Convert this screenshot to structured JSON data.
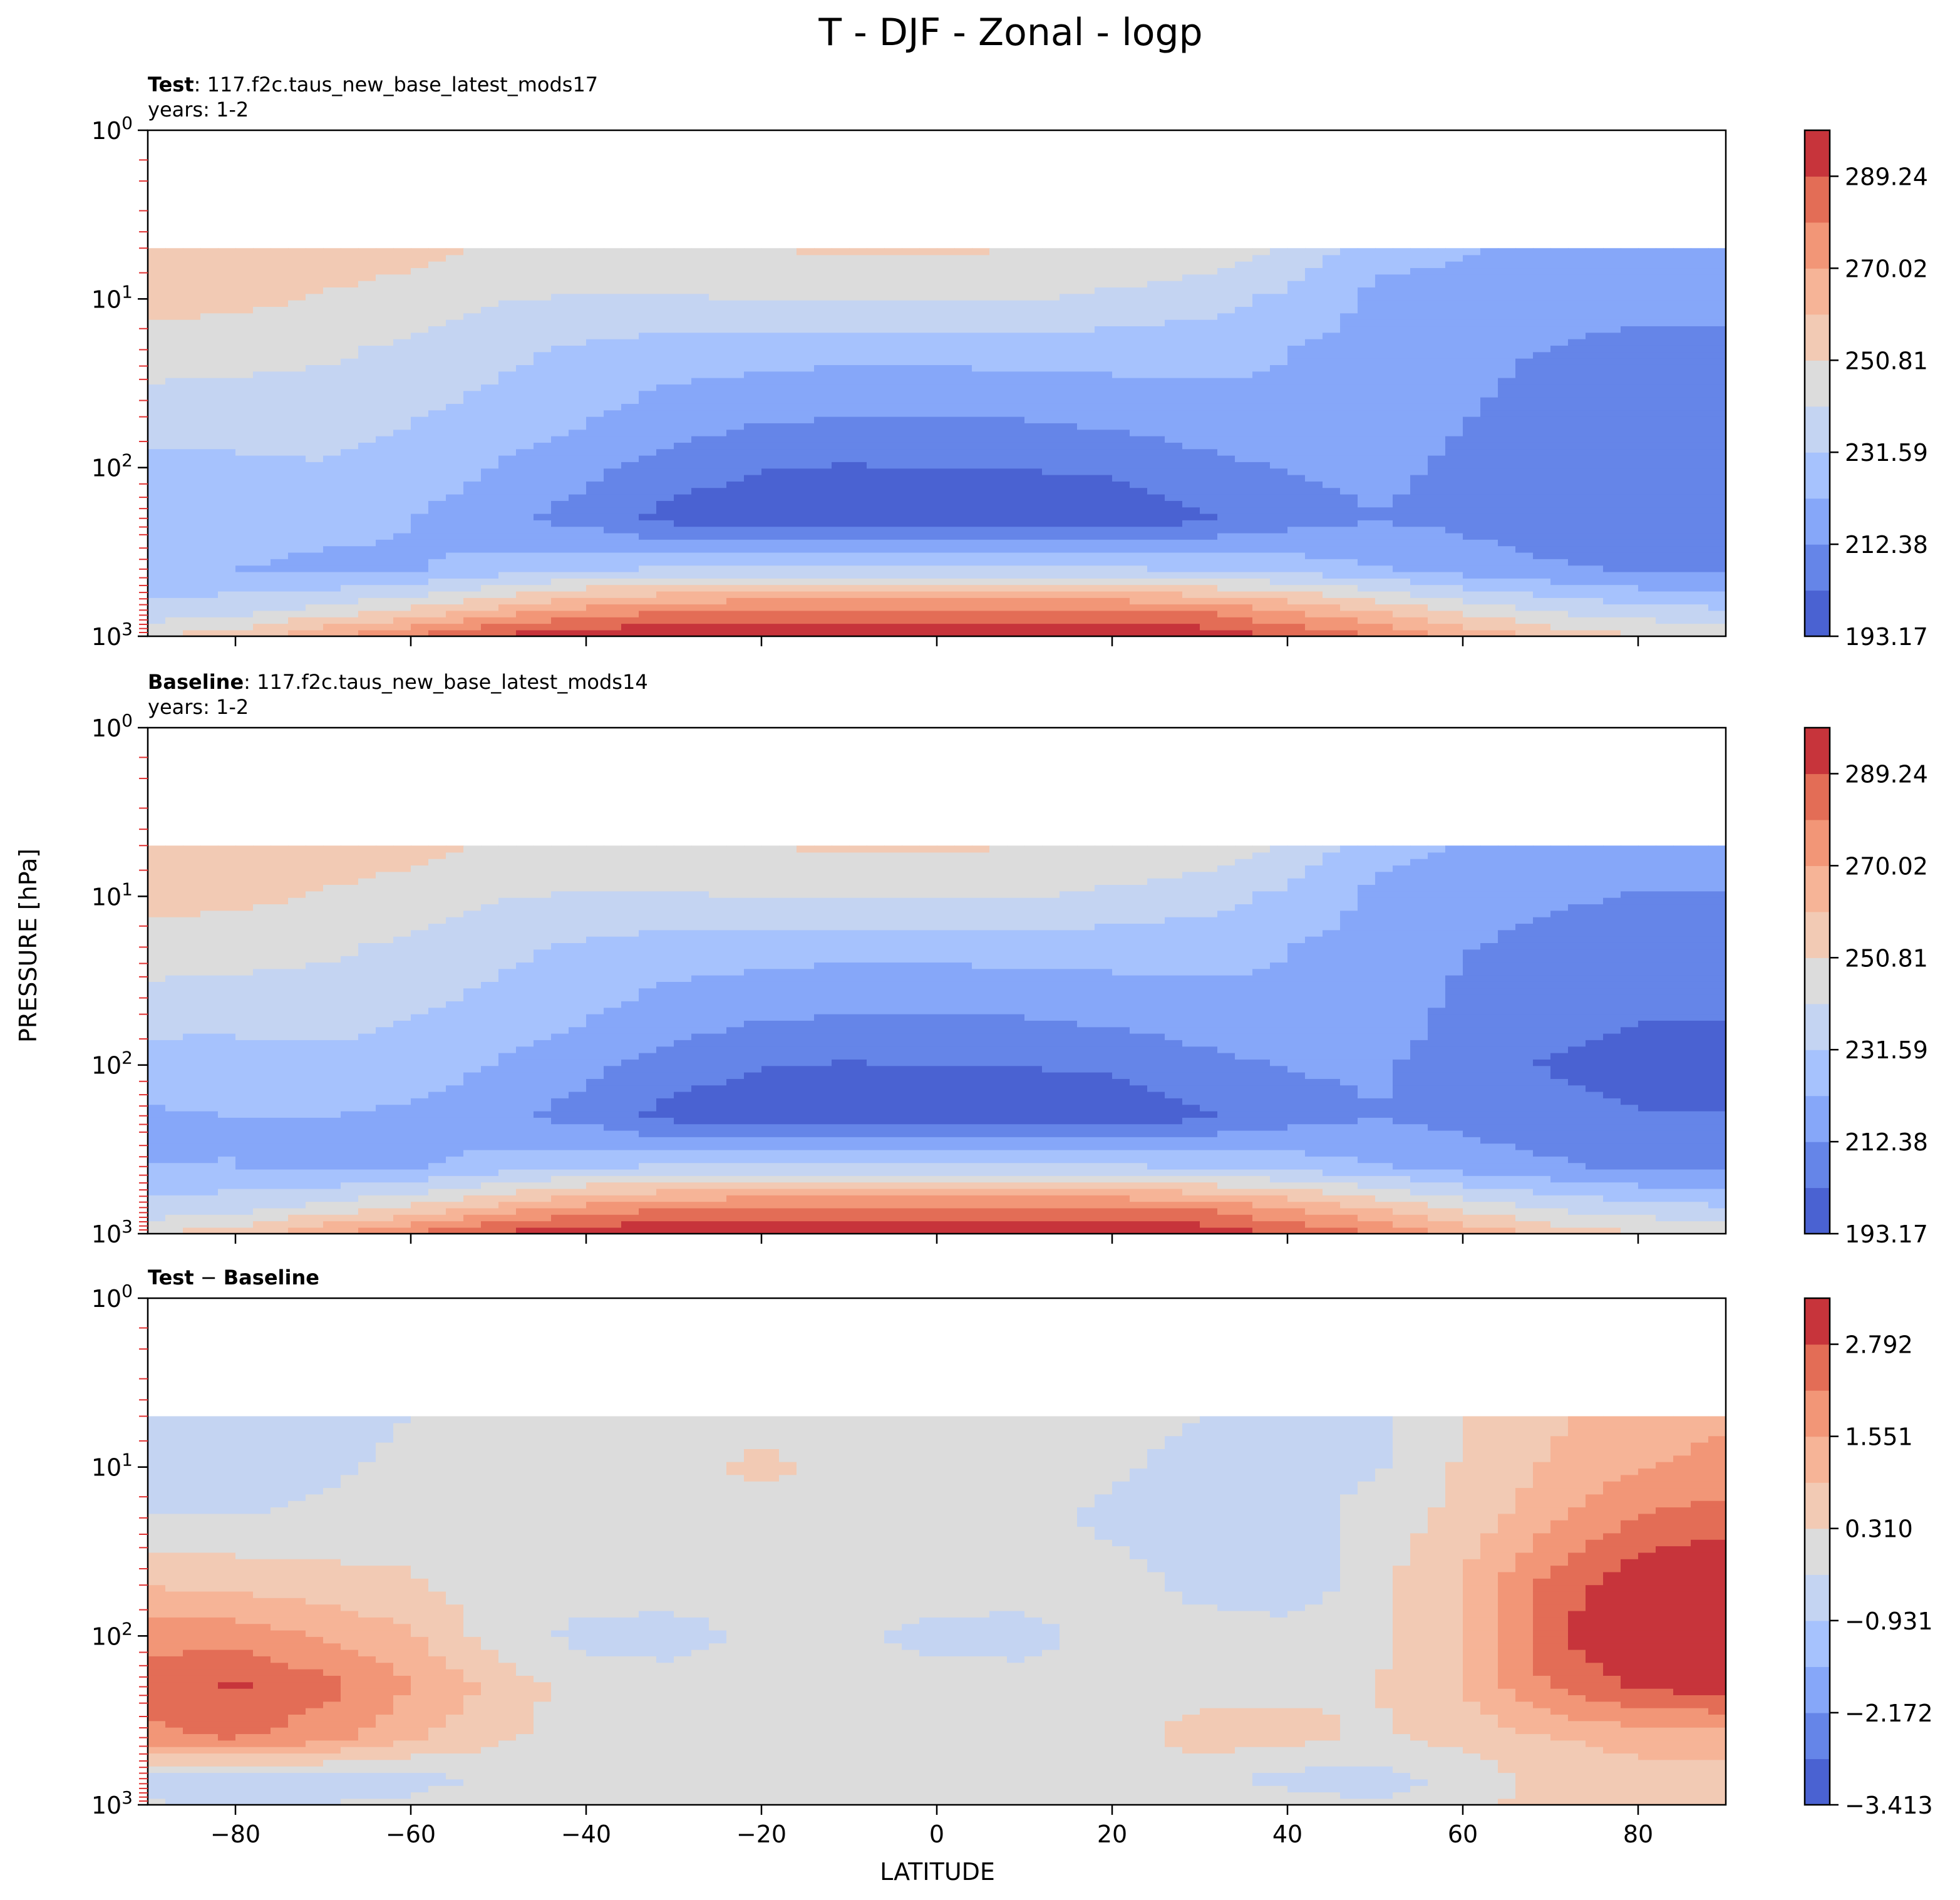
{
  "figure": {
    "title": "T - DJF - Zonal - logp",
    "ylabel": "PRESSURE [hPa]",
    "xlabel": "LATITUDE"
  },
  "colors": {
    "levels": [
      "#4a62d2",
      "#6585e8",
      "#86a7f9",
      "#a6c2fd",
      "#c4d4f2",
      "#dcdcdc",
      "#f2cab4",
      "#f6b497",
      "#f29677",
      "#e36d56",
      "#c7343b"
    ]
  },
  "chart_data": [
    {
      "type": "heatmap",
      "name": "test",
      "title_bold": "Test",
      "title_rest": ": 117.f2c.taus_new_base_latest_mods17",
      "subtitle": "years: 1-2",
      "x": [
        -90,
        -80,
        -70,
        -60,
        -50,
        -40,
        -30,
        -20,
        -10,
        0,
        10,
        20,
        30,
        40,
        50,
        60,
        70,
        80,
        90
      ],
      "y": [
        1000,
        700,
        400,
        200,
        100,
        50,
        20,
        10,
        5
      ],
      "xlim": [
        -90,
        90
      ],
      "ylim": [
        1000,
        1
      ],
      "yscale": "log",
      "yticklabels": [
        "10^3",
        "10^2",
        "10^1",
        "10^0"
      ],
      "colorbar_ticks": [
        "193.17",
        "212.38",
        "231.59",
        "250.81",
        "270.02",
        "289.24"
      ],
      "levels_min": 193.17,
      "levels_step": 9.605,
      "nlevels": 11,
      "z": [
        [
          250,
          256,
          270,
          281,
          292,
          297,
          298,
          299,
          299,
          299,
          299,
          298,
          296,
          289,
          280,
          268,
          258,
          252,
          250
        ],
        [
          235,
          238,
          244,
          252,
          264,
          274,
          279,
          282,
          283,
          283,
          283,
          282,
          278,
          270,
          260,
          248,
          240,
          235,
          233
        ],
        [
          222,
          222,
          220,
          221,
          226,
          231,
          233,
          234,
          234,
          234,
          234,
          233,
          231,
          228,
          223,
          218,
          214,
          211,
          210
        ],
        [
          225,
          226,
          225,
          222,
          215,
          208,
          199,
          196,
          196,
          197,
          197,
          197,
          201,
          208,
          212,
          210,
          206,
          205,
          205
        ],
        [
          229,
          230,
          231,
          229,
          221,
          215,
          208,
          203,
          202,
          203,
          203,
          204,
          209,
          213,
          215,
          210,
          205,
          205,
          205
        ],
        [
          236,
          235,
          235,
          232,
          228,
          223,
          217,
          214,
          212,
          212,
          213,
          215,
          218,
          221,
          218,
          213,
          208,
          207,
          207
        ],
        [
          246,
          245,
          243,
          239,
          234,
          230,
          227,
          226,
          225,
          225,
          226,
          226,
          225,
          222,
          219,
          215,
          212,
          210,
          210
        ],
        [
          255,
          253,
          250,
          247,
          242,
          240,
          240,
          242,
          242,
          242,
          242,
          239,
          236,
          229,
          220,
          218,
          216,
          215,
          215
        ],
        [
          258,
          257,
          256,
          254,
          250,
          250,
          250,
          251,
          252,
          252,
          251,
          250,
          247,
          240,
          225,
          223,
          220,
          218,
          218
        ]
      ]
    },
    {
      "type": "heatmap",
      "name": "baseline",
      "title_bold": "Baseline",
      "title_rest": ": 117.f2c.taus_new_base_latest_mods14",
      "subtitle": "years: 1-2",
      "x": [
        -90,
        -80,
        -70,
        -60,
        -50,
        -40,
        -30,
        -20,
        -10,
        0,
        10,
        20,
        30,
        40,
        50,
        60,
        70,
        80,
        90
      ],
      "y": [
        1000,
        700,
        400,
        200,
        100,
        50,
        20,
        10,
        5
      ],
      "xlim": [
        -90,
        90
      ],
      "ylim": [
        1000,
        1
      ],
      "yscale": "log",
      "yticklabels": [
        "10^3",
        "10^2",
        "10^1",
        "10^0"
      ],
      "colorbar_ticks": [
        "193.17",
        "212.38",
        "231.59",
        "250.81",
        "270.02",
        "289.24"
      ],
      "levels_min": 193.17,
      "levels_step": 9.605,
      "nlevels": 11,
      "z": [
        [
          250,
          256,
          270,
          281,
          292,
          297,
          298,
          299,
          299,
          299,
          299,
          298,
          296,
          289,
          280,
          268,
          258,
          252,
          250
        ],
        [
          235,
          238,
          244,
          252,
          264,
          274,
          279,
          282,
          283,
          283,
          283,
          282,
          278,
          270,
          260,
          248,
          240,
          235,
          233
        ],
        [
          222,
          222,
          220,
          221,
          226,
          231,
          233,
          234,
          234,
          234,
          234,
          233,
          231,
          228,
          223,
          218,
          214,
          211,
          210
        ],
        [
          221,
          222,
          222,
          220,
          215,
          208,
          199,
          196,
          196,
          197,
          197,
          197,
          201,
          208,
          212,
          209,
          205,
          203,
          203
        ],
        [
          226,
          227,
          229,
          228,
          221,
          215,
          208,
          203,
          202,
          203,
          203,
          204,
          209,
          213,
          214,
          208,
          202,
          201,
          201
        ],
        [
          236,
          235,
          235,
          232,
          228,
          223,
          217,
          214,
          212,
          212,
          213,
          215,
          218,
          221,
          217,
          210,
          205,
          203,
          203
        ],
        [
          246,
          245,
          243,
          239,
          234,
          230,
          227,
          226,
          225,
          225,
          226,
          226,
          225,
          222,
          219,
          213,
          209,
          207,
          206
        ],
        [
          255,
          253,
          250,
          247,
          242,
          240,
          240,
          242,
          242,
          242,
          242,
          239,
          236,
          229,
          220,
          217,
          214,
          212,
          212
        ],
        [
          258,
          257,
          256,
          254,
          250,
          250,
          250,
          251,
          252,
          252,
          251,
          250,
          247,
          240,
          225,
          222,
          218,
          215,
          215
        ]
      ]
    },
    {
      "type": "heatmap",
      "name": "difference",
      "title_bold": "Test",
      "title_rest": " − ",
      "title_bold2": "Baseline",
      "subtitle": "",
      "x": [
        -90,
        -80,
        -70,
        -60,
        -50,
        -40,
        -30,
        -20,
        -10,
        0,
        10,
        20,
        30,
        40,
        50,
        60,
        70,
        80,
        90
      ],
      "y": [
        1000,
        700,
        400,
        200,
        100,
        50,
        20,
        10,
        5
      ],
      "xlim": [
        -90,
        90
      ],
      "ylim": [
        1000,
        1
      ],
      "yscale": "log",
      "yticklabels": [
        "10^3",
        "10^2",
        "10^1",
        "10^0"
      ],
      "colorbar_ticks": [
        "−3.413",
        "−2.172",
        "−0.931",
        "0.310",
        "1.551",
        "2.792"
      ],
      "levels_min": -3.413,
      "levels_step": 0.6205,
      "nlevels": 11,
      "z": [
        [
          -0.2,
          -0.5,
          -0.3,
          -0.2,
          0.0,
          0.3,
          0.2,
          0.1,
          0.0,
          0.0,
          0.0,
          0.0,
          0.0,
          0.0,
          -0.3,
          0.1,
          0.6,
          0.9,
          0.9
        ],
        [
          -0.5,
          -0.7,
          -0.6,
          -0.5,
          -0.2,
          0.0,
          0.0,
          0.0,
          0.0,
          0.0,
          0.0,
          0.0,
          -0.2,
          -0.5,
          -0.6,
          -0.1,
          0.5,
          0.6,
          0.6
        ],
        [
          2.0,
          2.2,
          1.8,
          1.0,
          0.4,
          0.0,
          0.0,
          0.0,
          0.0,
          0.0,
          0.0,
          0.0,
          0.6,
          0.5,
          0.2,
          0.5,
          0.9,
          1.2,
          1.3
        ],
        [
          2.4,
          2.9,
          2.4,
          1.6,
          0.7,
          0.0,
          0.0,
          0.0,
          0.0,
          0.0,
          0.0,
          0.0,
          0.1,
          0.2,
          0.3,
          1.0,
          2.2,
          2.9,
          3.0
        ],
        [
          2.0,
          1.9,
          1.5,
          1.0,
          0.0,
          -0.5,
          -0.6,
          -0.1,
          -0.2,
          -0.5,
          -0.6,
          0.0,
          0.0,
          0.0,
          0.1,
          1.0,
          2.6,
          3.6,
          3.8
        ],
        [
          0.9,
          0.8,
          0.6,
          0.4,
          0.0,
          0.0,
          0.0,
          0.0,
          0.0,
          0.0,
          0.0,
          0.0,
          -0.5,
          -0.8,
          0.1,
          1.0,
          2.4,
          3.3,
          3.6
        ],
        [
          -0.3,
          -0.3,
          -0.2,
          0.0,
          0.0,
          0.0,
          0.0,
          0.0,
          0.0,
          0.0,
          0.0,
          -0.5,
          -0.7,
          -0.7,
          0.0,
          0.5,
          1.4,
          2.2,
          2.5
        ],
        [
          -0.7,
          -0.7,
          -0.4,
          -0.2,
          0.0,
          0.0,
          0.0,
          0.5,
          0.0,
          0.0,
          0.0,
          -0.2,
          -0.6,
          -0.5,
          -0.4,
          0.4,
          1.0,
          1.5,
          1.7
        ],
        [
          -0.6,
          -0.6,
          -0.5,
          -0.3,
          0.0,
          0.0,
          0.0,
          0.0,
          0.0,
          0.0,
          0.0,
          0.0,
          -0.3,
          -0.5,
          -0.4,
          0.3,
          0.8,
          1.3,
          1.5
        ]
      ]
    }
  ],
  "xticklabels": [
    "−80",
    "−60",
    "−40",
    "−20",
    "0",
    "20",
    "40",
    "60",
    "80"
  ]
}
